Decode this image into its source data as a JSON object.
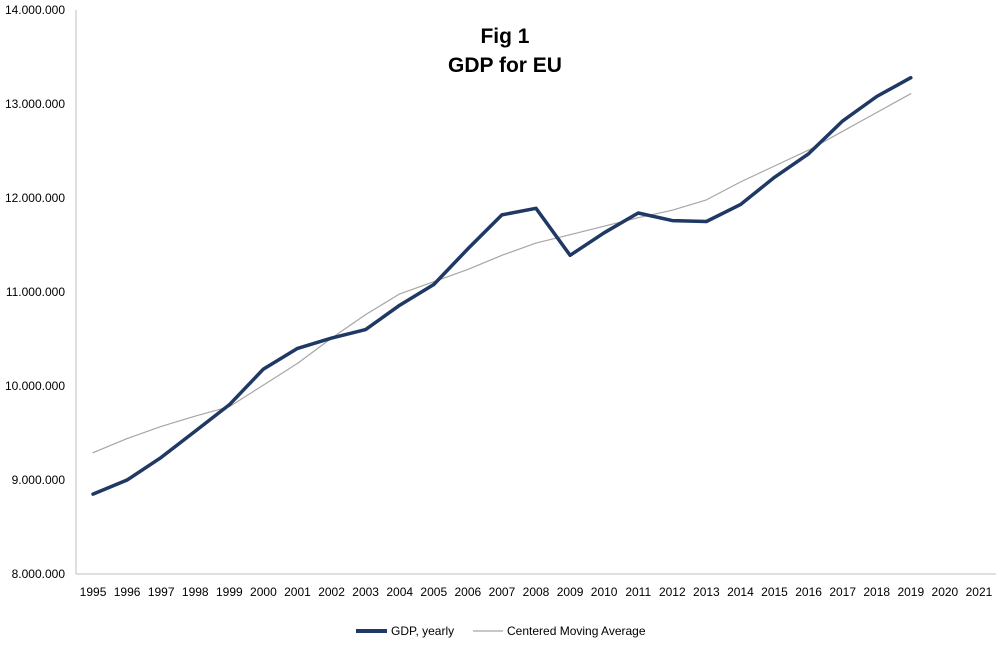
{
  "chart_data": {
    "type": "line",
    "title": "Fig 1",
    "subtitle": "GDP for EU",
    "xlabel": "",
    "ylabel": "",
    "categories": [
      "1995",
      "1996",
      "1997",
      "1998",
      "1999",
      "2000",
      "2001",
      "2002",
      "2003",
      "2004",
      "2005",
      "2006",
      "2007",
      "2008",
      "2009",
      "2010",
      "2011",
      "2012",
      "2013",
      "2014",
      "2015",
      "2016",
      "2017",
      "2018",
      "2019",
      "2020",
      "2021"
    ],
    "ylim": [
      8000000,
      14000000
    ],
    "yticks": [
      8000000,
      9000000,
      10000000,
      11000000,
      12000000,
      13000000,
      14000000
    ],
    "ytick_labels": [
      "8.000.000",
      "9.000.000",
      "10.000.000",
      "11.000.000",
      "12.000.000",
      "13.000.000",
      "14.000.000"
    ],
    "grid": false,
    "legend_position": "bottom",
    "series": [
      {
        "name": "GDP, yearly",
        "color": "#1f3864",
        "values": [
          8850000,
          9000000,
          9240000,
          9520000,
          9800000,
          10180000,
          10400000,
          10510000,
          10600000,
          10860000,
          11080000,
          11460000,
          11820000,
          11890000,
          11390000,
          11630000,
          11840000,
          11760000,
          11750000,
          11930000,
          12220000,
          12470000,
          12820000,
          13080000,
          13280000,
          null,
          null
        ]
      },
      {
        "name": "Centered Moving Average",
        "color": "#a6a6a6",
        "values": [
          9290000,
          9440000,
          9570000,
          9680000,
          9780000,
          10010000,
          10240000,
          10510000,
          10760000,
          10980000,
          11110000,
          11240000,
          11390000,
          11520000,
          11610000,
          11700000,
          11790000,
          11870000,
          11980000,
          12170000,
          12340000,
          12510000,
          12710000,
          12910000,
          13110000,
          null,
          null
        ]
      }
    ]
  }
}
